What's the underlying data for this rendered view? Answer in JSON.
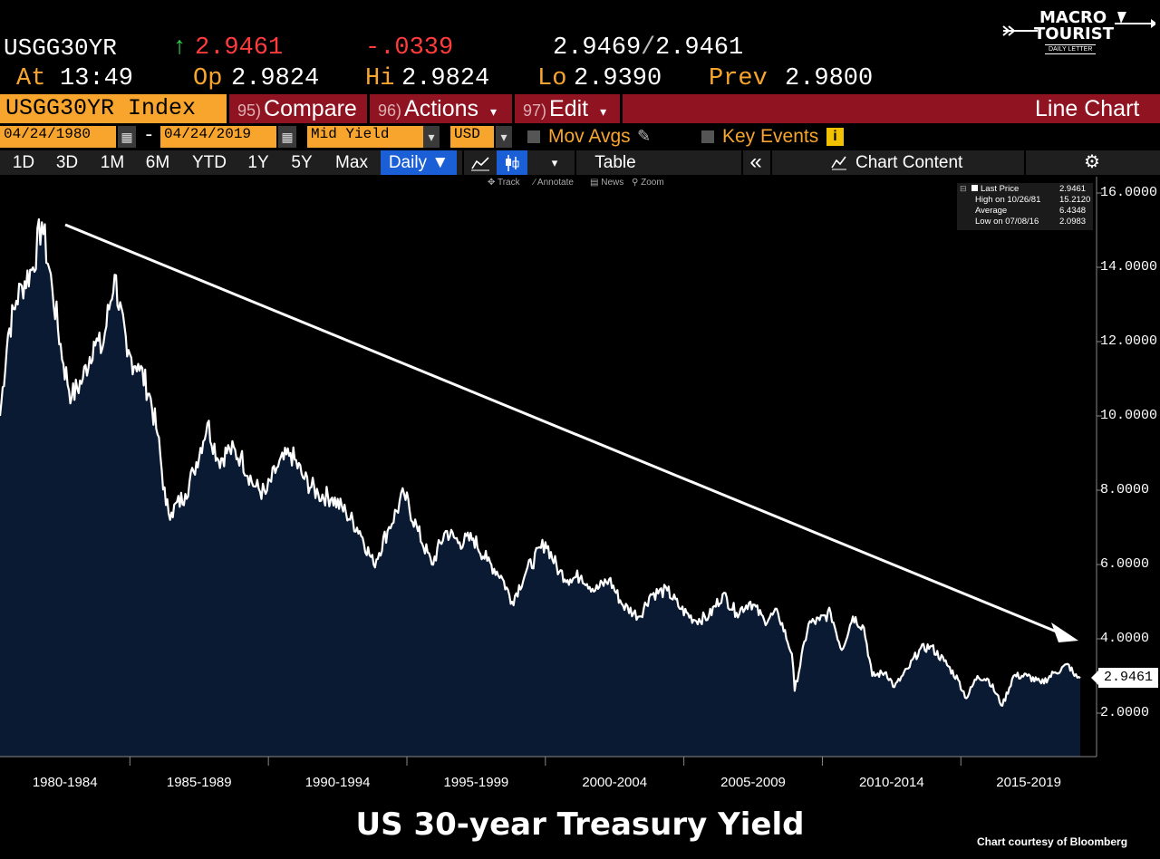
{
  "quote": {
    "ticker": "USGG30YR",
    "last_arrow": "↑",
    "last": "2.9461",
    "change": "-.0339",
    "bid": "2.9469",
    "slash": "/",
    "ask": "2.9461",
    "at_label": "At",
    "time": "13:49",
    "op_label": "Op",
    "open": "2.9824",
    "hi_label": "Hi",
    "high": "2.9824",
    "lo_label": "Lo",
    "low": "2.9390",
    "prev_label": "Prev",
    "prev": "2.9800"
  },
  "logo": {
    "line1": "MACRO",
    "line2": "TOURIST",
    "line3": "DAILY LETTER"
  },
  "command_bar": {
    "index": "USGG30YR Index",
    "compare_num": "95)",
    "compare": "Compare",
    "actions_num": "96)",
    "actions": "Actions",
    "edit_num": "97)",
    "edit": "Edit",
    "dropdown": "▾",
    "chart_type": "Line Chart"
  },
  "params": {
    "start_date": "04/24/1980",
    "dash": "-",
    "end_date": "04/24/2019",
    "field": "Mid Yield",
    "currency": "USD",
    "mov_avgs": "Mov Avgs",
    "key_events": "Key Events",
    "info": "i"
  },
  "toolbar": {
    "periods": [
      "1D",
      "3D",
      "1M",
      "6M",
      "YTD",
      "1Y",
      "5Y",
      "Max"
    ],
    "frequency": "Daily ▼",
    "table": "Table",
    "collapse": "«",
    "chart_content": "Chart Content",
    "settings_icon": "gear-icon"
  },
  "mini_tools": {
    "track": "Track",
    "annotate": "Annotate",
    "news": "News",
    "zoom": "Zoom"
  },
  "legend": {
    "last_price_label": "Last Price",
    "last_price": "2.9461",
    "high_label": "High on 10/26/81",
    "high": "15.2120",
    "average_label": "Average",
    "average": "6.4348",
    "low_label": "Low on 07/08/16",
    "low": "2.0983"
  },
  "last_value_tag": "2.9461",
  "caption": "US 30-year Treasury Yield",
  "credit": "Chart courtesy of Bloomberg",
  "colors": {
    "area_fill": "#0b1a33",
    "line": "#ffffff",
    "accent_orange": "#f7a52d",
    "bar_red": "#8f1320",
    "selected_blue": "#1a5fd6"
  },
  "chart_data": {
    "type": "area",
    "title": "US 30-year Treasury Yield",
    "x_tick_labels": [
      "1980-1984",
      "1985-1989",
      "1990-1994",
      "1995-1999",
      "2000-2004",
      "2005-2009",
      "2010-2014",
      "2015-2019"
    ],
    "y_tick_labels": [
      "2.0000",
      "4.0000",
      "6.0000",
      "8.0000",
      "10.0000",
      "12.0000",
      "14.0000",
      "16.0000"
    ],
    "ylim": [
      1.0,
      16.5
    ],
    "xlim": [
      1980.31,
      2019.31
    ],
    "series": [
      {
        "x": [
          1980.31,
          1980.6,
          1980.9,
          1981.1,
          1981.5,
          1981.82,
          1982.2,
          1982.6,
          1982.9,
          1983.3,
          1983.7,
          1984.0,
          1984.45,
          1984.9,
          1985.3,
          1985.7,
          1986.0,
          1986.3,
          1986.5,
          1987.0,
          1987.3,
          1987.8,
          1988.2,
          1988.6,
          1989.0,
          1989.5,
          1989.9,
          1990.3,
          1990.8,
          1991.3,
          1991.8,
          1992.3,
          1992.8,
          1993.3,
          1993.8,
          1994.3,
          1994.9,
          1995.4,
          1995.9,
          1996.4,
          1996.9,
          1997.4,
          1997.9,
          1998.4,
          1998.8,
          1999.3,
          2000.0,
          2000.5,
          2000.9,
          2001.3,
          2001.8,
          2002.3,
          2002.8,
          2003.4,
          2003.8,
          2004.4,
          2004.9,
          2005.4,
          2005.9,
          2006.4,
          2006.9,
          2007.4,
          2007.9,
          2008.4,
          2008.9,
          2009.0,
          2009.5,
          2009.9,
          2010.3,
          2010.7,
          2011.1,
          2011.5,
          2011.8,
          2012.3,
          2012.6,
          2013.1,
          2013.5,
          2013.9,
          2014.4,
          2014.9,
          2015.2,
          2015.6,
          2016.0,
          2016.5,
          2016.9,
          2017.4,
          2017.9,
          2018.4,
          2018.9,
          2019.1,
          2019.31
        ],
        "values": [
          10.0,
          12.2,
          13.1,
          13.5,
          14.0,
          15.21,
          13.4,
          11.4,
          10.5,
          11.0,
          12.0,
          11.8,
          13.8,
          11.6,
          11.4,
          10.6,
          9.5,
          7.6,
          7.4,
          7.9,
          8.5,
          9.8,
          8.8,
          9.1,
          8.9,
          8.1,
          7.9,
          8.6,
          9.0,
          8.3,
          7.9,
          7.8,
          7.4,
          6.9,
          6.0,
          6.9,
          7.9,
          6.9,
          6.0,
          6.9,
          6.6,
          6.7,
          6.1,
          5.7,
          5.0,
          5.8,
          6.6,
          5.8,
          5.6,
          5.7,
          5.3,
          5.6,
          4.9,
          4.6,
          5.2,
          5.3,
          4.8,
          4.5,
          4.6,
          5.2,
          4.7,
          5.0,
          4.5,
          4.7,
          3.6,
          2.6,
          4.4,
          4.5,
          4.7,
          3.7,
          4.6,
          4.3,
          3.0,
          3.1,
          2.7,
          3.2,
          3.7,
          3.8,
          3.4,
          2.9,
          2.4,
          3.0,
          2.9,
          2.2,
          3.0,
          3.0,
          2.8,
          3.1,
          3.3,
          3.0,
          2.9461
        ]
      }
    ],
    "trend_arrow": {
      "from": [
        1981.8,
        15.0
      ],
      "to": [
        2019.3,
        3.7
      ]
    }
  }
}
